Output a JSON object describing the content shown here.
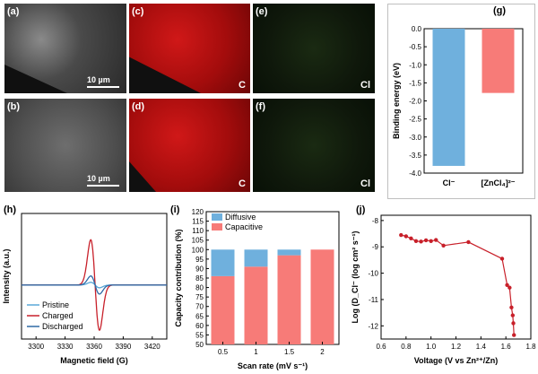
{
  "panels": {
    "a": {
      "label": "(a)",
      "scale": "10 µm"
    },
    "b": {
      "label": "(b)",
      "scale": "10 µm"
    },
    "c": {
      "label": "(c)",
      "element": "C"
    },
    "d": {
      "label": "(d)",
      "element": "C"
    },
    "e": {
      "label": "(e)",
      "element": "Cl"
    },
    "f": {
      "label": "(f)",
      "element": "Cl"
    },
    "g": {
      "label": "(g)"
    },
    "h": {
      "label": "(h)"
    },
    "i": {
      "label": "(i)"
    },
    "j": {
      "label": "(j)"
    }
  },
  "chart_data": [
    {
      "id": "g",
      "type": "bar",
      "categories": [
        "Cl⁻",
        "[ZnCl₄]²⁻"
      ],
      "values": [
        -3.8,
        -1.78
      ],
      "colors": [
        "#6fb0dd",
        "#f77b78"
      ],
      "ylabel": "Binding energy (eV)",
      "ylim": [
        -4.0,
        0.0
      ],
      "yticks": [
        "0.0",
        "-0.5",
        "-1.0",
        "-1.5",
        "-2.0",
        "-2.5",
        "-3.0",
        "-3.5",
        "-4.0"
      ]
    },
    {
      "id": "h",
      "type": "line",
      "xlabel": "Magnetic field (G)",
      "ylabel": "Intensity (a.u.)",
      "xlim": [
        3285,
        3435
      ],
      "xticks": [
        "3300",
        "3330",
        "3360",
        "3390",
        "3420"
      ],
      "legend": "bottom-left",
      "series": [
        {
          "name": "Pristine",
          "color": "#5aa8d8",
          "peak": 0.06
        },
        {
          "name": "Charged",
          "color": "#c8202a",
          "peak": 1.0
        },
        {
          "name": "Discharged",
          "color": "#2f6aa6",
          "peak": 0.2
        }
      ]
    },
    {
      "id": "i",
      "type": "bar",
      "categories": [
        "0.5",
        "1",
        "1.5",
        "2"
      ],
      "series": [
        {
          "name": "Capacitive",
          "values": [
            86,
            91,
            97,
            100
          ],
          "color": "#f77b78"
        },
        {
          "name": "Diffusive",
          "values": [
            14,
            9,
            3,
            0
          ],
          "color": "#6fb0dd"
        }
      ],
      "xlabel": "Scan rate (mV s⁻¹)",
      "ylabel": "Capacity contribution (%)",
      "ylim": [
        50,
        120
      ],
      "yticks": [
        "50",
        "55",
        "60",
        "65",
        "70",
        "75",
        "80",
        "85",
        "90",
        "95",
        "100",
        "105",
        "110",
        "115",
        "120"
      ],
      "legend": "top-left"
    },
    {
      "id": "j",
      "type": "line",
      "xlabel": "Voltage (V vs Zn²⁺/Zn)",
      "ylabel": "Log (D_Cl⁻ (log cm² s⁻¹)",
      "xlim": [
        0.6,
        1.8
      ],
      "ylim": [
        -12.5,
        -7.8
      ],
      "xticks": [
        "0.6",
        "0.8",
        "1.0",
        "1.2",
        "1.4",
        "1.6",
        "1.8"
      ],
      "yticks": [
        "-8",
        "-9",
        "-10",
        "-11",
        "-12"
      ],
      "series": [
        {
          "name": "",
          "color": "#c8202a",
          "x": [
            0.76,
            0.8,
            0.84,
            0.88,
            0.92,
            0.96,
            1.0,
            1.04,
            1.1,
            1.3,
            1.57,
            1.61,
            1.63,
            1.645,
            1.655,
            1.66,
            1.665
          ],
          "y": [
            -8.55,
            -8.6,
            -8.68,
            -8.78,
            -8.8,
            -8.75,
            -8.78,
            -8.74,
            -8.95,
            -8.82,
            -9.45,
            -10.45,
            -10.55,
            -11.3,
            -11.6,
            -11.9,
            -12.35
          ]
        }
      ]
    }
  ]
}
